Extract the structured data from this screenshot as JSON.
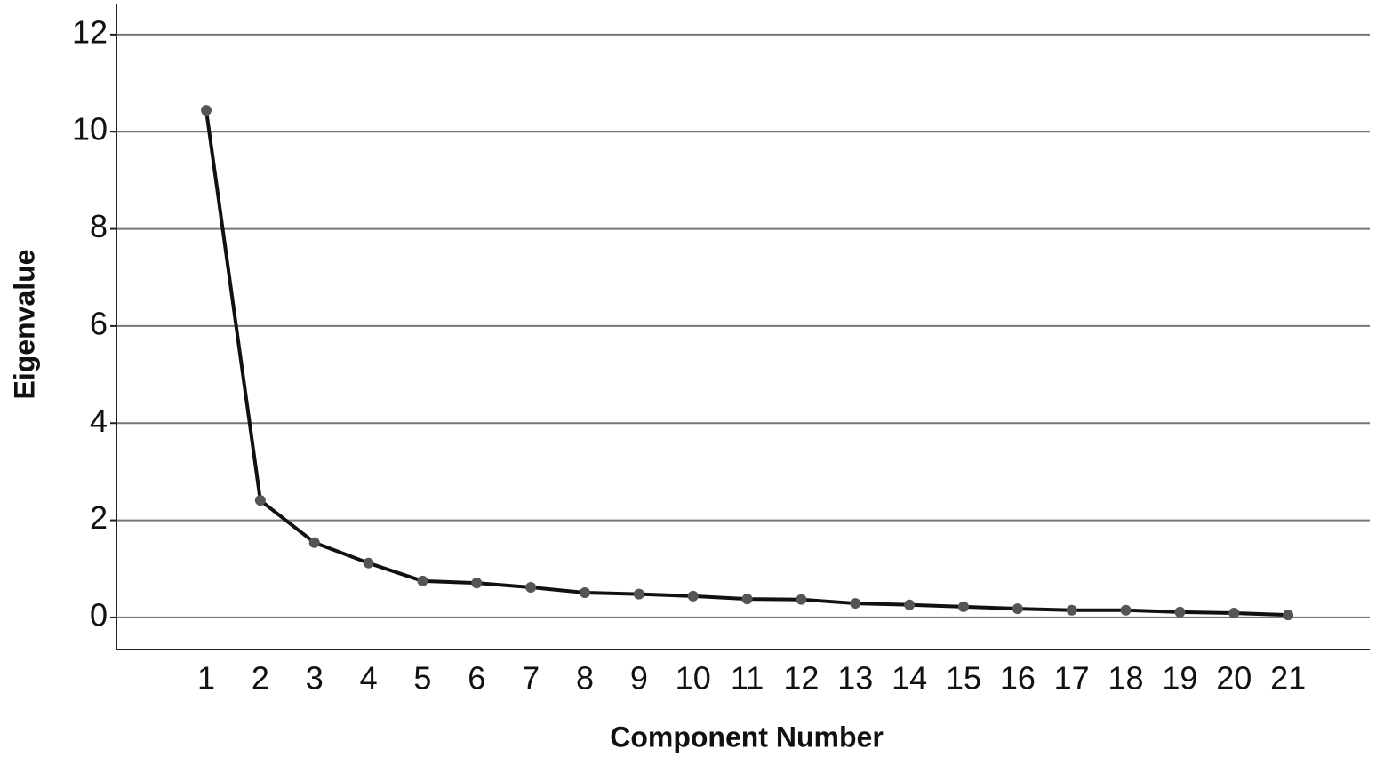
{
  "chart_data": {
    "type": "line",
    "xlabel": "Component Number",
    "ylabel": "Eigenvalue",
    "x": [
      1,
      2,
      3,
      4,
      5,
      6,
      7,
      8,
      9,
      10,
      11,
      12,
      13,
      14,
      15,
      16,
      17,
      18,
      19,
      20,
      21
    ],
    "series": [
      {
        "color": "#111111",
        "marker_color": "#555555",
        "values": [
          10.44,
          2.41,
          1.54,
          1.12,
          0.75,
          0.71,
          0.62,
          0.51,
          0.48,
          0.44,
          0.38,
          0.37,
          0.29,
          0.26,
          0.22,
          0.18,
          0.15,
          0.15,
          0.11,
          0.09,
          0.05
        ]
      }
    ],
    "xlim": [
      -0.66,
      22.51
    ],
    "xticks": [
      1,
      2,
      3,
      4,
      5,
      6,
      7,
      8,
      9,
      10,
      11,
      12,
      13,
      14,
      15,
      16,
      17,
      18,
      19,
      20,
      21
    ],
    "ylim": [
      -0.66,
      12.62
    ],
    "yticks": [
      0,
      2,
      4,
      6,
      8,
      10,
      12
    ],
    "grid": true
  }
}
